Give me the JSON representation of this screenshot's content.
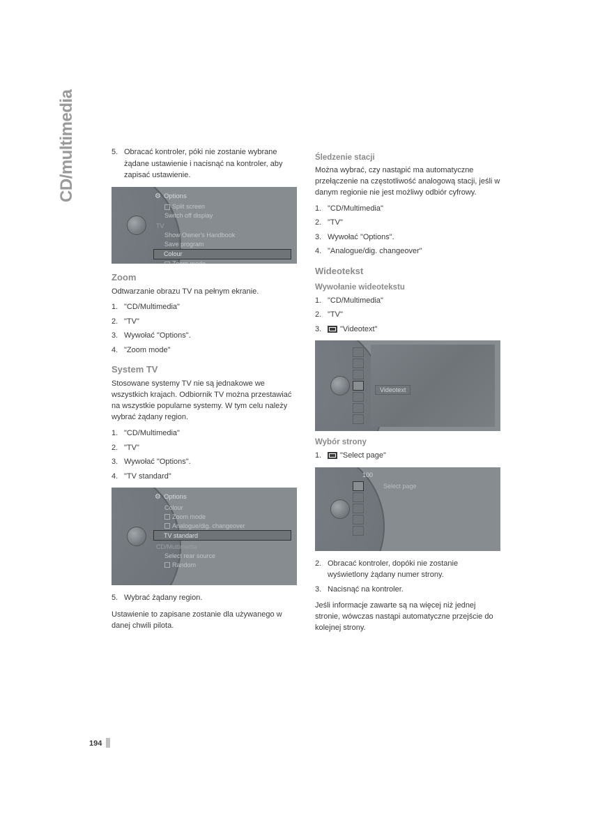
{
  "sideTab": "CD/multimedia",
  "pageNumber": "194",
  "left": {
    "topList": [
      {
        "num": "5.",
        "text": "Obracać kontroler, póki nie zostanie wybrane żądane ustawienie i nacisnąć na kontroler, aby zapisać ustawienie."
      }
    ],
    "shot1": {
      "title": "Options",
      "rows": [
        {
          "t": "Split screen",
          "chk": true
        },
        {
          "t": "Switch off display"
        },
        {
          "t": "TV",
          "section": true
        },
        {
          "t": "Show Owner's Handbook"
        },
        {
          "t": "Save program"
        },
        {
          "t": "Colour",
          "hl": true
        },
        {
          "t": "Zoom mode",
          "chk": true
        }
      ]
    },
    "zoom": {
      "h": "Zoom",
      "intro": "Odtwarzanie obrazu TV na pełnym ekranie.",
      "list": [
        {
          "num": "1.",
          "text": "\"CD/Multimedia\""
        },
        {
          "num": "2.",
          "text": "\"TV\""
        },
        {
          "num": "3.",
          "text": "Wywołać \"Options\"."
        },
        {
          "num": "4.",
          "text": "\"Zoom mode\""
        }
      ]
    },
    "systemTv": {
      "h": "System TV",
      "intro": "Stosowane systemy TV nie są jednakowe we wszystkich krajach. Odbiornik TV można przestawiać na wszystkie popularne systemy. W tym celu należy wybrać żądany region.",
      "list": [
        {
          "num": "1.",
          "text": "\"CD/Multimedia\""
        },
        {
          "num": "2.",
          "text": "\"TV\""
        },
        {
          "num": "3.",
          "text": "Wywołać \"Options\"."
        },
        {
          "num": "4.",
          "text": "\"TV standard\""
        }
      ]
    },
    "shot2": {
      "title": "Options",
      "rows": [
        {
          "t": "Colour"
        },
        {
          "t": "Zoom mode",
          "chk": true
        },
        {
          "t": "Analogue/dig. changeover",
          "chk": true
        },
        {
          "t": "TV standard",
          "hl": true
        },
        {
          "t": "CD/Multimedia",
          "section": true
        },
        {
          "t": "Select rear source"
        },
        {
          "t": "Random",
          "chk": true
        }
      ]
    },
    "afterShot2": [
      {
        "num": "5.",
        "text": "Wybrać żądany region."
      }
    ],
    "closing": "Ustawienie to zapisane zostanie dla używanego w danej chwili pilota."
  },
  "right": {
    "sledzenie": {
      "h": "Śledzenie stacji",
      "intro": "Można wybrać, czy nastąpić ma automatyczne przełączenie na częstotliwość analogową stacji, jeśli w danym regionie nie jest możliwy odbiór cyfrowy.",
      "list": [
        {
          "num": "1.",
          "text": "\"CD/Multimedia\""
        },
        {
          "num": "2.",
          "text": "\"TV\""
        },
        {
          "num": "3.",
          "text": "Wywołać \"Options\"."
        },
        {
          "num": "4.",
          "text": "\"Analogue/dig. changeover\""
        }
      ]
    },
    "wideoH": "Wideotekst",
    "wywolanie": {
      "h": "Wywołanie wideotekstu",
      "list": [
        {
          "num": "1.",
          "text": "\"CD/Multimedia\""
        },
        {
          "num": "2.",
          "text": "\"TV\""
        },
        {
          "num": "3.",
          "text": "\"Videotext\"",
          "icon": true
        }
      ]
    },
    "shot3": {
      "label": "Videotext"
    },
    "wybor": {
      "h": "Wybór strony",
      "list": [
        {
          "num": "1.",
          "text": "\"Select page\"",
          "icon": true
        }
      ]
    },
    "shot4": {
      "num": "100",
      "label": "Select page"
    },
    "afterShot4": [
      {
        "num": "2.",
        "text": "Obracać kontroler, dopóki nie zostanie wyświetlony żądany numer strony."
      },
      {
        "num": "3.",
        "text": "Nacisnąć na kontroler."
      }
    ],
    "closing": "Jeśli informacje zawarte są na więcej niż jednej stronie, wówczas nastąpi automatyczne przejście do kolejnej strony."
  }
}
